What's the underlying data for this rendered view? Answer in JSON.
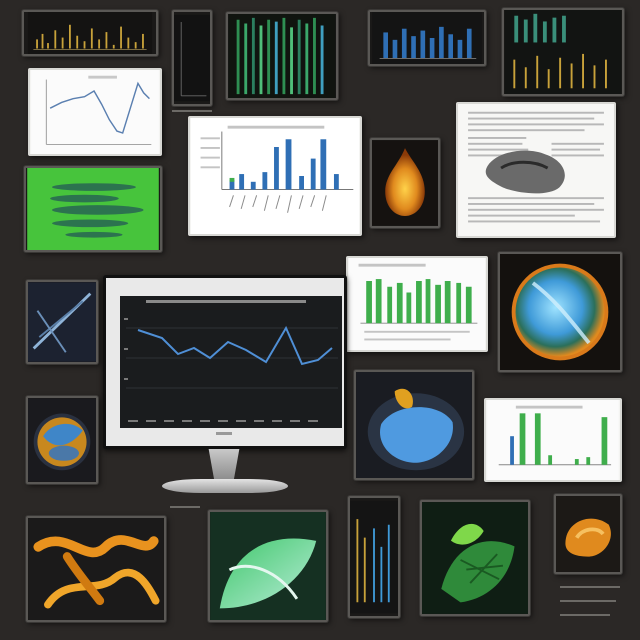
{
  "scene": {
    "colors": {
      "background": "#2b2826",
      "gold": "#c8a23a",
      "green": "#3fae4c",
      "blue": "#2f6fb5",
      "orange": "#e08a1e",
      "cyan": "#6ec6e8"
    }
  },
  "tiles": [
    {
      "id": "gold-bars-thumb",
      "kind": "chart-thumbnail",
      "theme": "dark"
    },
    {
      "id": "narrow-dark-thumb",
      "kind": "chart-thumbnail",
      "theme": "dark"
    },
    {
      "id": "green-streaks-thumb",
      "kind": "chart-thumbnail",
      "theme": "dark"
    },
    {
      "id": "blue-bars-thumb",
      "kind": "chart-thumbnail",
      "theme": "dark"
    },
    {
      "id": "teal-bars-thumb",
      "kind": "chart-thumbnail",
      "theme": "dark"
    },
    {
      "id": "line-plot-thumb",
      "kind": "chart-thumbnail",
      "theme": "light"
    },
    {
      "id": "bar-chart-panel",
      "kind": "chart-thumbnail",
      "theme": "light"
    },
    {
      "id": "flame-thumb",
      "kind": "image-thumbnail",
      "theme": "dark"
    },
    {
      "id": "document-panel",
      "kind": "document-thumbnail",
      "theme": "light"
    },
    {
      "id": "green-screen-thumb",
      "kind": "image-thumbnail",
      "theme": "dark"
    },
    {
      "id": "green-bar-panel",
      "kind": "chart-thumbnail",
      "theme": "light"
    },
    {
      "id": "globe-thumb",
      "kind": "image-thumbnail",
      "theme": "dark"
    },
    {
      "id": "xray-thumb",
      "kind": "image-thumbnail",
      "theme": "dark"
    },
    {
      "id": "bowl-thumb",
      "kind": "image-thumbnail",
      "theme": "dark"
    },
    {
      "id": "blue-shell-thumb",
      "kind": "image-thumbnail",
      "theme": "dark"
    },
    {
      "id": "small-bar-panel",
      "kind": "chart-thumbnail",
      "theme": "light"
    },
    {
      "id": "orange-ribbon-thumb",
      "kind": "image-thumbnail",
      "theme": "dark"
    },
    {
      "id": "green-leaf-thumb",
      "kind": "image-thumbnail",
      "theme": "dark"
    },
    {
      "id": "strip-thumb",
      "kind": "image-thumbnail",
      "theme": "dark"
    },
    {
      "id": "green-coral-thumb",
      "kind": "image-thumbnail",
      "theme": "dark"
    },
    {
      "id": "orange-blob-thumb",
      "kind": "image-thumbnail",
      "theme": "dark"
    }
  ],
  "monitor": {
    "label": "computer-monitor",
    "chart": {
      "type": "line",
      "theme": "dark",
      "line_color": "#4f8fd6"
    }
  }
}
